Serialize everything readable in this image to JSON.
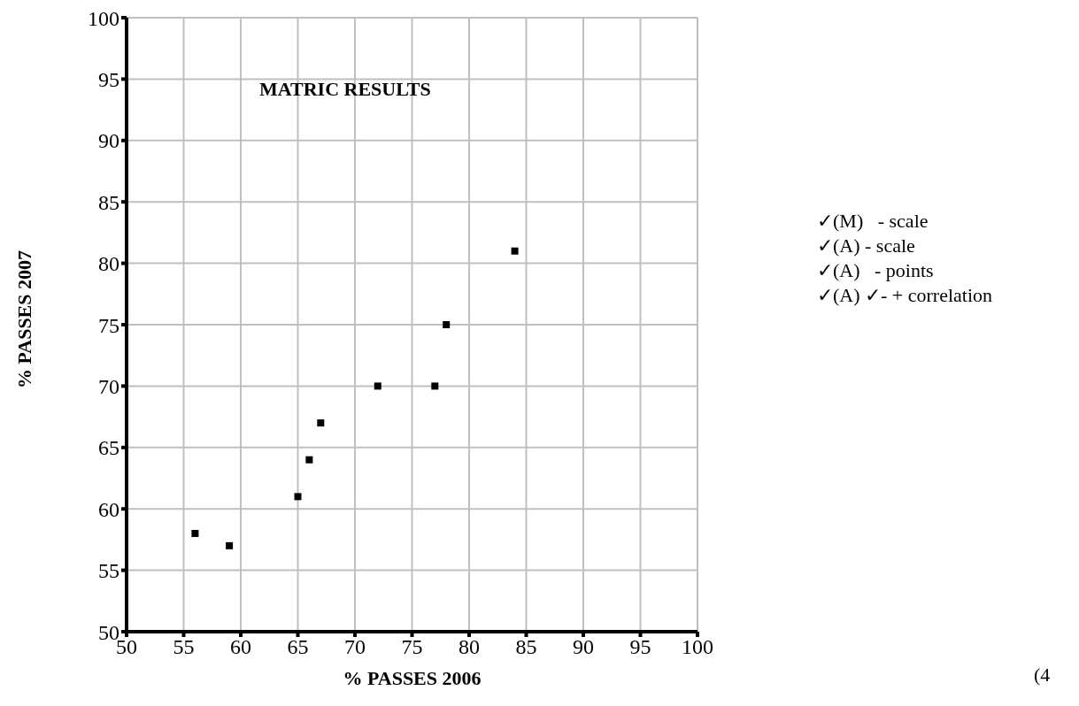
{
  "chart_data": {
    "type": "scatter",
    "title": "MATRIC RESULTS",
    "xlabel": "% PASSES 2006",
    "ylabel": "% PASSES 2007",
    "x": [
      56,
      59,
      65,
      66,
      67,
      72,
      77,
      78,
      84
    ],
    "series": [
      {
        "color": "#000000",
        "values": [
          58,
          57,
          61,
          64,
          67,
          70,
          70,
          75,
          81
        ]
      }
    ],
    "xlim": [
      50,
      100
    ],
    "xticks": [
      50,
      55,
      60,
      65,
      70,
      75,
      80,
      85,
      90,
      95,
      100
    ],
    "ylim": [
      50,
      100
    ],
    "yticks": [
      50,
      55,
      60,
      65,
      70,
      75,
      80,
      85,
      90,
      95,
      100
    ],
    "grid": true,
    "marker": "square",
    "annotations": [
      "✓(M)   - scale\n✓(A) - scale\n✓(A)   - points\n✓(A) ✓- + correlation",
      "(4"
    ]
  }
}
